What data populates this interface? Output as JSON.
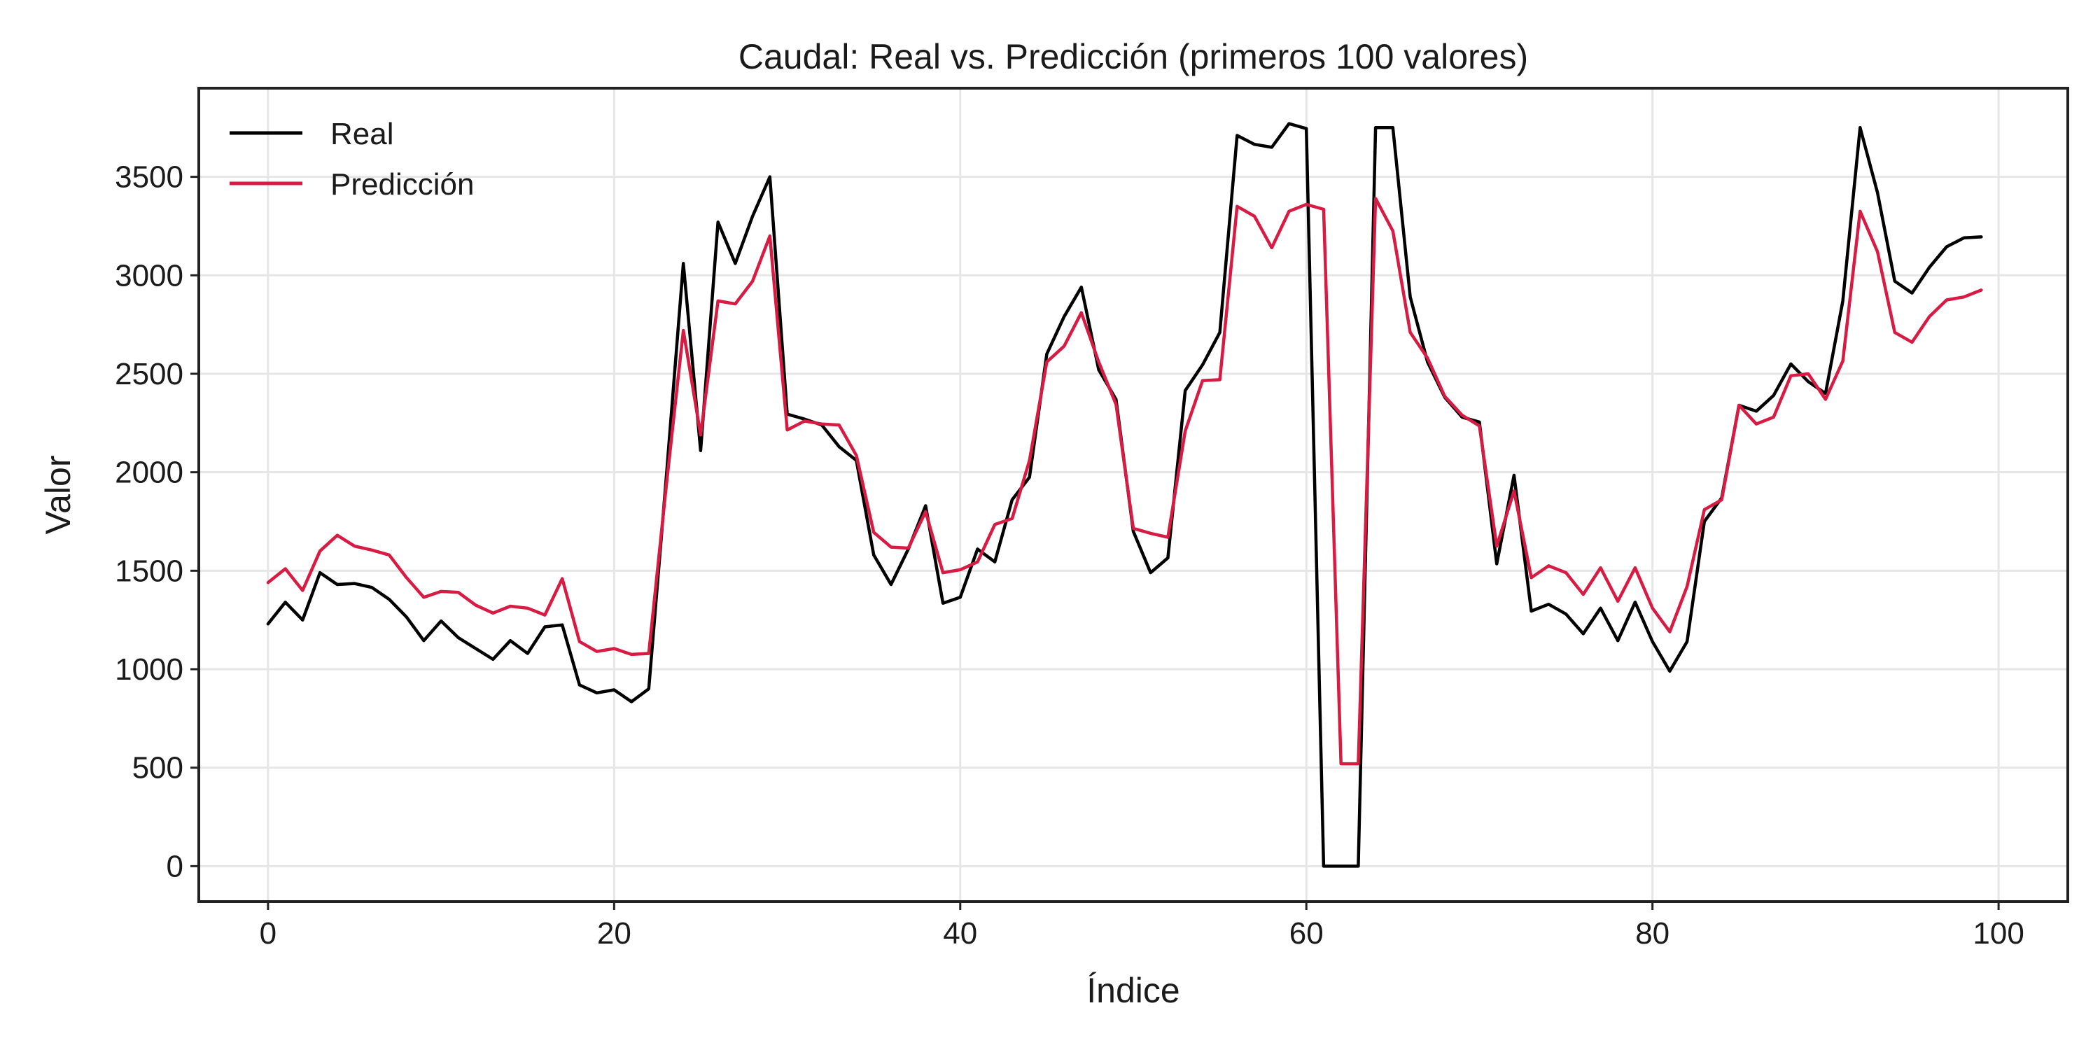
{
  "chart_data": {
    "type": "line",
    "title": "Caudal: Real vs. Predicción (primeros 100 valores)",
    "xlabel": "Índice",
    "ylabel": "Valor",
    "xlim": [
      -4,
      104
    ],
    "ylim": [
      -180,
      3950
    ],
    "xticks": [
      0,
      20,
      40,
      60,
      80,
      100
    ],
    "yticks": [
      0,
      500,
      1000,
      1500,
      2000,
      2500,
      3000,
      3500
    ],
    "grid": true,
    "legend_position": "top-left",
    "x": [
      0,
      1,
      2,
      3,
      4,
      5,
      6,
      7,
      8,
      9,
      10,
      11,
      12,
      13,
      14,
      15,
      16,
      17,
      18,
      19,
      20,
      21,
      22,
      23,
      24,
      25,
      26,
      27,
      28,
      29,
      30,
      31,
      32,
      33,
      34,
      35,
      36,
      37,
      38,
      39,
      40,
      41,
      42,
      43,
      44,
      45,
      46,
      47,
      48,
      49,
      50,
      51,
      52,
      53,
      54,
      55,
      56,
      57,
      58,
      59,
      60,
      61,
      62,
      63,
      64,
      65,
      66,
      67,
      68,
      69,
      70,
      71,
      72,
      73,
      74,
      75,
      76,
      77,
      78,
      79,
      80,
      81,
      82,
      83,
      84,
      85,
      86,
      87,
      88,
      89,
      90,
      91,
      92,
      93,
      94,
      95,
      96,
      97,
      98,
      99
    ],
    "series": [
      {
        "name": "Real",
        "color": "#000000",
        "values": [
          1230,
          1340,
          1250,
          1490,
          1430,
          1435,
          1415,
          1355,
          1265,
          1145,
          1245,
          1160,
          1105,
          1050,
          1145,
          1080,
          1215,
          1225,
          920,
          880,
          895,
          835,
          900,
          1960,
          3060,
          2110,
          3270,
          3060,
          3300,
          3500,
          2295,
          2270,
          2240,
          2130,
          2060,
          1580,
          1430,
          1610,
          1830,
          1335,
          1365,
          1610,
          1545,
          1860,
          1975,
          2600,
          2790,
          2940,
          2520,
          2370,
          1700,
          1490,
          1565,
          2415,
          2545,
          2710,
          3710,
          3665,
          3650,
          3770,
          3745,
          0,
          0,
          0,
          3750,
          3750,
          2890,
          2560,
          2380,
          2280,
          2255,
          1535,
          1985,
          1295,
          1330,
          1280,
          1180,
          1310,
          1145,
          1340,
          1140,
          990,
          1140,
          1750,
          1870,
          2340,
          2310,
          2390,
          2550,
          2460,
          2400,
          2870,
          3750,
          3420,
          2970,
          2910,
          3040,
          3145,
          3190,
          3195
        ]
      },
      {
        "name": "Predicción",
        "color": "#d81b43",
        "values": [
          1440,
          1510,
          1400,
          1600,
          1680,
          1625,
          1605,
          1580,
          1465,
          1365,
          1395,
          1390,
          1325,
          1285,
          1320,
          1310,
          1275,
          1460,
          1140,
          1090,
          1105,
          1075,
          1080,
          1920,
          2720,
          2190,
          2870,
          2855,
          2970,
          3200,
          2215,
          2260,
          2245,
          2240,
          2085,
          1695,
          1620,
          1615,
          1800,
          1490,
          1505,
          1545,
          1735,
          1765,
          2060,
          2560,
          2640,
          2810,
          2560,
          2345,
          1715,
          1690,
          1670,
          2210,
          2465,
          2470,
          3350,
          3300,
          3140,
          3325,
          3360,
          3335,
          520,
          520,
          3390,
          3225,
          2710,
          2580,
          2385,
          2290,
          2235,
          1625,
          1905,
          1465,
          1525,
          1490,
          1380,
          1515,
          1345,
          1515,
          1310,
          1190,
          1420,
          1810,
          1860,
          2340,
          2245,
          2280,
          2490,
          2500,
          2370,
          2565,
          3325,
          3120,
          2710,
          2660,
          2790,
          2875,
          2890,
          2925
        ]
      }
    ]
  }
}
